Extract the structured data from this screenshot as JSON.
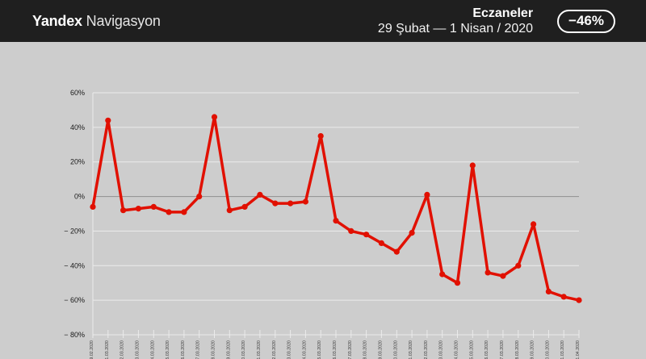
{
  "header": {
    "brand": {
      "bold": "Yandex",
      "regular": "Navigasyon"
    },
    "title": "Eczaneler",
    "date_range": "29 Şubat — 1 Nisan / 2020",
    "badge_label": "−46%"
  },
  "colors": {
    "header_bg": "#1f1f1f",
    "page_bg": "#cdcdcd",
    "line": "#e11000",
    "grid": "#ebebeb",
    "zero_line": "#8f8f8f",
    "axis_label": "#1a1a1a",
    "tick_label": "#3c3c3c",
    "header_text": "#ffffff"
  },
  "chart_data": {
    "type": "line",
    "title": "Eczaneler",
    "subtitle": "29 Şubat — 1 Nisan / 2020",
    "summary_change": "−46%",
    "x": [
      "29.02.2020",
      "01.03.2020",
      "02.03.2020",
      "03.03.2020",
      "04.03.2020",
      "05.03.2020",
      "06.03.2020",
      "07.03.2020",
      "08.03.2020",
      "09.03.2020",
      "10.03.2020",
      "11.03.2020",
      "12.03.2020",
      "13.03.2020",
      "14.03.2020",
      "15.03.2020",
      "16.03.2020",
      "17.03.2020",
      "18.03.2020",
      "19.03.2020",
      "20.03.2020",
      "21.03.2020",
      "22.03.2020",
      "23.03.2020",
      "24.03.2020",
      "25.03.2020",
      "26.03.2020",
      "27.03.2020",
      "28.03.2020",
      "29.03.2020",
      "30.03.2020",
      "31.03.2020",
      "01.04.2020"
    ],
    "series": [
      {
        "name": "Eczaneler",
        "values": [
          -6,
          44,
          -8,
          -7,
          -6,
          -9,
          -9,
          0,
          46,
          -8,
          -6,
          1,
          -4,
          -4,
          -3,
          35,
          -14,
          -20,
          -22,
          -27,
          -32,
          -21,
          1,
          -45,
          -50,
          18,
          -44,
          -46,
          -40,
          -16,
          -55,
          -58,
          -60
        ]
      }
    ],
    "ylim": [
      -80,
      60
    ],
    "ytick_step": 20,
    "ytick_labels": [
      "60%",
      "40%",
      "20%",
      "0%",
      "− 20%",
      "− 40%",
      "− 60%",
      "− 80%"
    ],
    "grid": true,
    "legend": "none",
    "marker": "circle",
    "xlabel": "",
    "ylabel": ""
  }
}
